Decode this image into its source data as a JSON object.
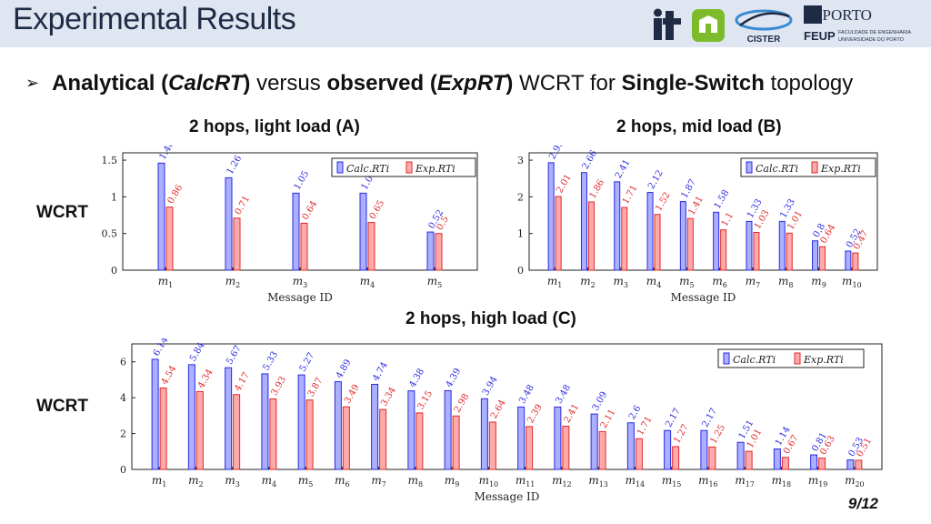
{
  "slide": {
    "title": "Experimental Results",
    "bullet": {
      "p1": "Analytical (",
      "p2": "CalcRT",
      "p3": ") versus ",
      "p4": "observed (",
      "p5": "ExpRT",
      "p6": ") WCRT for ",
      "p7": "Single-Switch",
      "p8": " topology"
    },
    "wcrt_label": "WCRT",
    "page": "9/12",
    "logos": {
      "it": "it",
      "cister": "CISTER",
      "uporto": "U.PORTO",
      "feup": "FEUP",
      "feup_line1": "FACULDADE DE ENGENHARIA",
      "feup_line2": "UNIVERSIDADE DO PORTO"
    }
  },
  "colors": {
    "calc_fill": "#aab0ff",
    "calc_stroke": "#2a2ae0",
    "exp_fill": "#ffaaaa",
    "exp_stroke": "#e02a2a",
    "header_bg": "#dfe6f2",
    "title_color": "#1f2a44"
  },
  "chart_data": [
    {
      "title": "2 hops, light load (A)",
      "type": "bar",
      "xlabel": "Message ID",
      "categories": [
        "m1",
        "m2",
        "m3",
        "m4",
        "m5"
      ],
      "ylim": [
        0,
        1.6
      ],
      "yticks": [
        0,
        0.5,
        1,
        1.5
      ],
      "series": [
        {
          "name": "Calc.RTi",
          "values": [
            1.46,
            1.26,
            1.05,
            1.05,
            0.52
          ]
        },
        {
          "name": "Exp.RTi",
          "values": [
            0.86,
            0.71,
            0.64,
            0.65,
            0.5
          ]
        }
      ],
      "legend": "top-right"
    },
    {
      "title": "2 hops, mid load (B)",
      "type": "bar",
      "xlabel": "Message ID",
      "categories": [
        "m1",
        "m2",
        "m3",
        "m4",
        "m5",
        "m6",
        "m7",
        "m8",
        "m9",
        "m10"
      ],
      "ylim": [
        0,
        3.2
      ],
      "yticks": [
        0,
        1,
        2,
        3
      ],
      "series": [
        {
          "name": "Calc.RTi",
          "values": [
            2.93,
            2.66,
            2.41,
            2.12,
            1.87,
            1.58,
            1.33,
            1.33,
            0.8,
            0.52
          ]
        },
        {
          "name": "Exp.RTi",
          "values": [
            2.01,
            1.86,
            1.71,
            1.52,
            1.41,
            1.1,
            1.03,
            1.01,
            0.64,
            0.47
          ]
        }
      ],
      "legend": "top-right"
    },
    {
      "title": "2 hops, high load (C)",
      "type": "bar",
      "xlabel": "Message ID",
      "categories": [
        "m1",
        "m2",
        "m3",
        "m4",
        "m5",
        "m6",
        "m7",
        "m8",
        "m9",
        "m10",
        "m11",
        "m12",
        "m13",
        "m14",
        "m15",
        "m16",
        "m17",
        "m18",
        "m19",
        "m20"
      ],
      "ylim": [
        0,
        7
      ],
      "yticks": [
        0,
        2,
        4,
        6
      ],
      "series": [
        {
          "name": "Calc.RTi",
          "values": [
            6.14,
            5.84,
            5.67,
            5.33,
            5.27,
            4.89,
            4.74,
            4.38,
            4.39,
            3.94,
            3.48,
            3.48,
            3.09,
            2.6,
            2.17,
            2.17,
            1.51,
            1.14,
            0.81,
            0.53
          ]
        },
        {
          "name": "Exp.RTi",
          "values": [
            4.54,
            4.34,
            4.17,
            3.93,
            3.87,
            3.49,
            3.34,
            3.15,
            2.98,
            2.64,
            2.39,
            2.41,
            2.11,
            1.71,
            1.27,
            1.25,
            1.01,
            0.67,
            0.63,
            0.51
          ]
        }
      ],
      "legend": "top-right"
    }
  ]
}
